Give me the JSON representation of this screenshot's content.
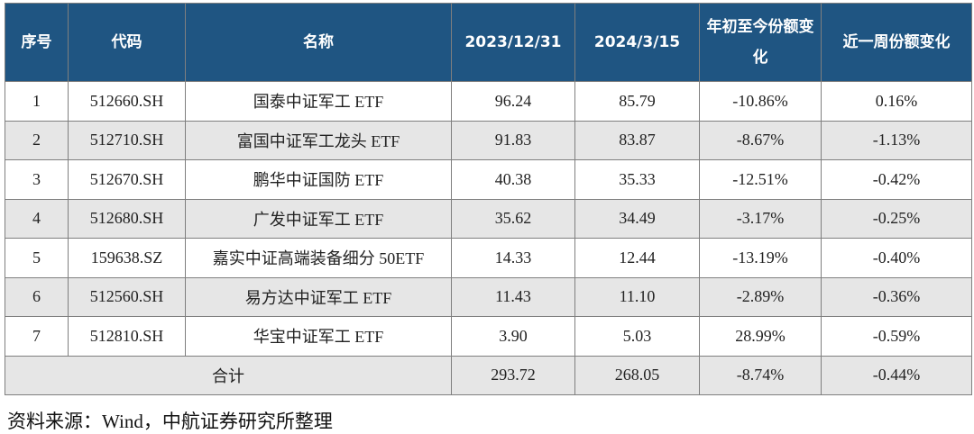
{
  "table": {
    "header": [
      "序号",
      "代码",
      "名称",
      "2023/12/31",
      "2024/3/15",
      "年初至今份额变化",
      "近一周份额变化"
    ],
    "rows": [
      [
        "1",
        "512660.SH",
        "国泰中证军工 ETF",
        "96.24",
        "85.79",
        "-10.86%",
        "0.16%"
      ],
      [
        "2",
        "512710.SH",
        "富国中证军工龙头 ETF",
        "91.83",
        "83.87",
        "-8.67%",
        "-1.13%"
      ],
      [
        "3",
        "512670.SH",
        "鹏华中证国防 ETF",
        "40.38",
        "35.33",
        "-12.51%",
        "-0.42%"
      ],
      [
        "4",
        "512680.SH",
        "广发中证军工 ETF",
        "35.62",
        "34.49",
        "-3.17%",
        "-0.25%"
      ],
      [
        "5",
        "159638.SZ",
        "嘉实中证高端装备细分 50ETF",
        "14.33",
        "12.44",
        "-13.19%",
        "-0.40%"
      ],
      [
        "6",
        "512560.SH",
        "易方达中证军工 ETF",
        "11.43",
        "11.10",
        "-2.89%",
        "-0.36%"
      ],
      [
        "7",
        "512810.SH",
        "华宝中证军工 ETF",
        "3.90",
        "5.03",
        "28.99%",
        "-0.59%"
      ]
    ],
    "total": {
      "label": "合计",
      "values": [
        "293.72",
        "268.05",
        "-8.74%",
        "-0.44%"
      ]
    }
  },
  "source": "资料来源：Wind，中航证券研究所整理"
}
